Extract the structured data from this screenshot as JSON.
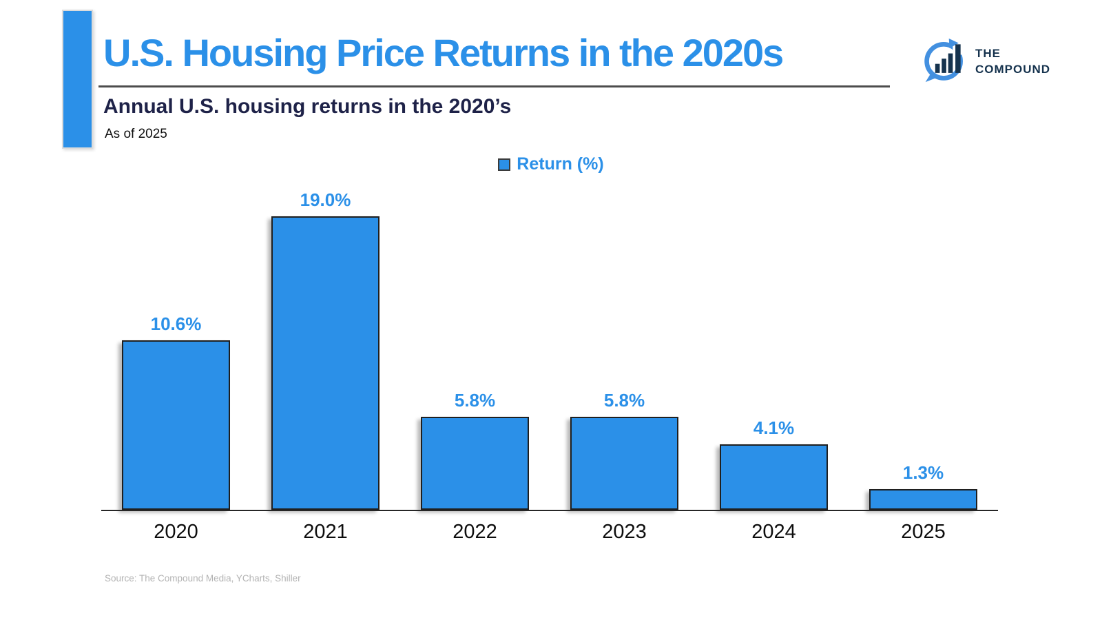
{
  "header": {
    "title": "U.S. Housing Price Returns in the 2020s",
    "subtitle": "Annual U.S. housing returns in the 2020’s",
    "as_of": "As of 2025"
  },
  "logo": {
    "line1": "THE",
    "line2": "COMPOUND",
    "icon": "compound-circular-arrow-bar-chart"
  },
  "legend": {
    "label": "Return (%)"
  },
  "source": "Source: The Compound Media, YCharts, Shiller",
  "colors": {
    "accent_blue": "#2b90e8",
    "navy": "#1e2248",
    "logo_navy": "#16334e",
    "logo_arrow_blue": "#4390e0",
    "bar_border": "#1f1f1f",
    "axis": "#262626",
    "source_gray": "#b3b3b3"
  },
  "chart_data": {
    "type": "bar",
    "title": "Annual U.S. housing returns in the 2020's",
    "categories": [
      "2020",
      "2021",
      "2022",
      "2023",
      "2024",
      "2025"
    ],
    "values": [
      10.6,
      19.0,
      5.8,
      5.8,
      4.1,
      1.3
    ],
    "series_name": "Return (%)",
    "value_suffix": "%",
    "value_decimals": 1,
    "xlabel": "",
    "ylabel": "Return (%)",
    "ylim": [
      0,
      20
    ],
    "grid": false,
    "legend_position": "top-center",
    "bar_color": "#2b90e8",
    "data_labels": true
  }
}
